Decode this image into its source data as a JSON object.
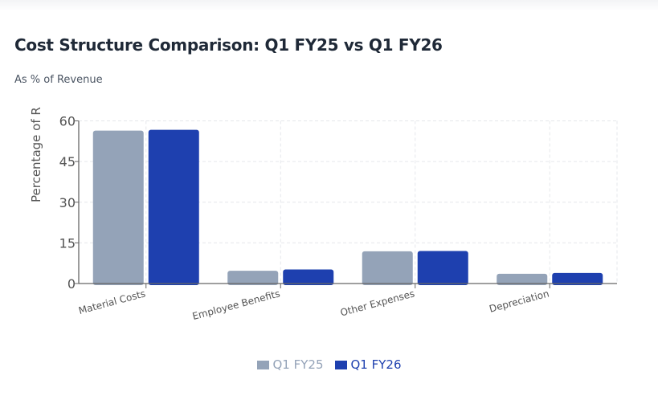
{
  "chart_data": {
    "type": "bar",
    "title": "Cost Structure Comparison: Q1 FY25 vs Q1 FY26",
    "subtitle": "As % of Revenue",
    "ylabel": "Percentage of R",
    "xlabel": "",
    "categories": [
      "Material Costs",
      "Employee Benefits",
      "Other Expenses",
      "Depreciation"
    ],
    "series": [
      {
        "name": "Q1 FY25",
        "color": "#94a3b8",
        "values": [
          56.4,
          4.7,
          11.9,
          3.6
        ]
      },
      {
        "name": "Q1 FY26",
        "color": "#1e40af",
        "values": [
          56.7,
          5.2,
          12.0,
          3.9
        ]
      }
    ],
    "ylim": [
      0,
      60
    ],
    "yticks": [
      0,
      15,
      30,
      45,
      60
    ],
    "grid": true,
    "legend_position": "bottom"
  }
}
